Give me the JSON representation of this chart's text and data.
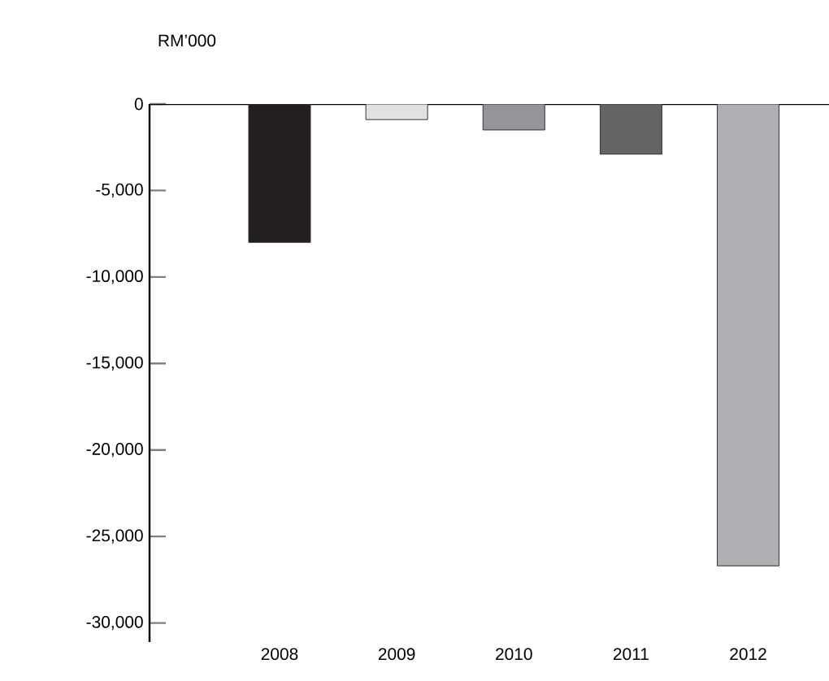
{
  "chart_data": {
    "type": "bar",
    "ylabel": "RM’000",
    "categories": [
      "2008",
      "2009",
      "2010",
      "2011",
      "2012"
    ],
    "values": [
      -8000,
      -900,
      -1500,
      -2900,
      -26700
    ],
    "colors": [
      "#231f20",
      "#e0e1e2",
      "#939598",
      "#636466",
      "#adafb2"
    ],
    "ylim": [
      -31100,
      0
    ],
    "yticks": [
      {
        "value": 0,
        "label": "0"
      },
      {
        "value": -5000,
        "label": "-5,000"
      },
      {
        "value": -10000,
        "label": "-10,000"
      },
      {
        "value": -15000,
        "label": "-15,000"
      },
      {
        "value": -20000,
        "label": "-20,000"
      },
      {
        "value": -25000,
        "label": "-25,000"
      },
      {
        "value": -30000,
        "label": "-30,000"
      }
    ],
    "grid": false
  }
}
